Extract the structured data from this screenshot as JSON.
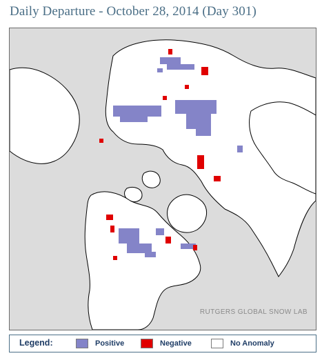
{
  "title": "Daily Departure - October 28, 2014 (Day 301)",
  "credit": "RUTGERS GLOBAL SNOW LAB",
  "legend": {
    "title": "Legend:",
    "items": [
      {
        "label": "Positive",
        "color": "#8484c8"
      },
      {
        "label": "Negative",
        "color": "#e00000"
      },
      {
        "label": "No Anomaly",
        "color": "#ffffff"
      }
    ]
  },
  "colors": {
    "ocean": "#dcdcdc",
    "land": "#ffffff",
    "coastline": "#000000",
    "title_text": "#4a6e86"
  }
}
